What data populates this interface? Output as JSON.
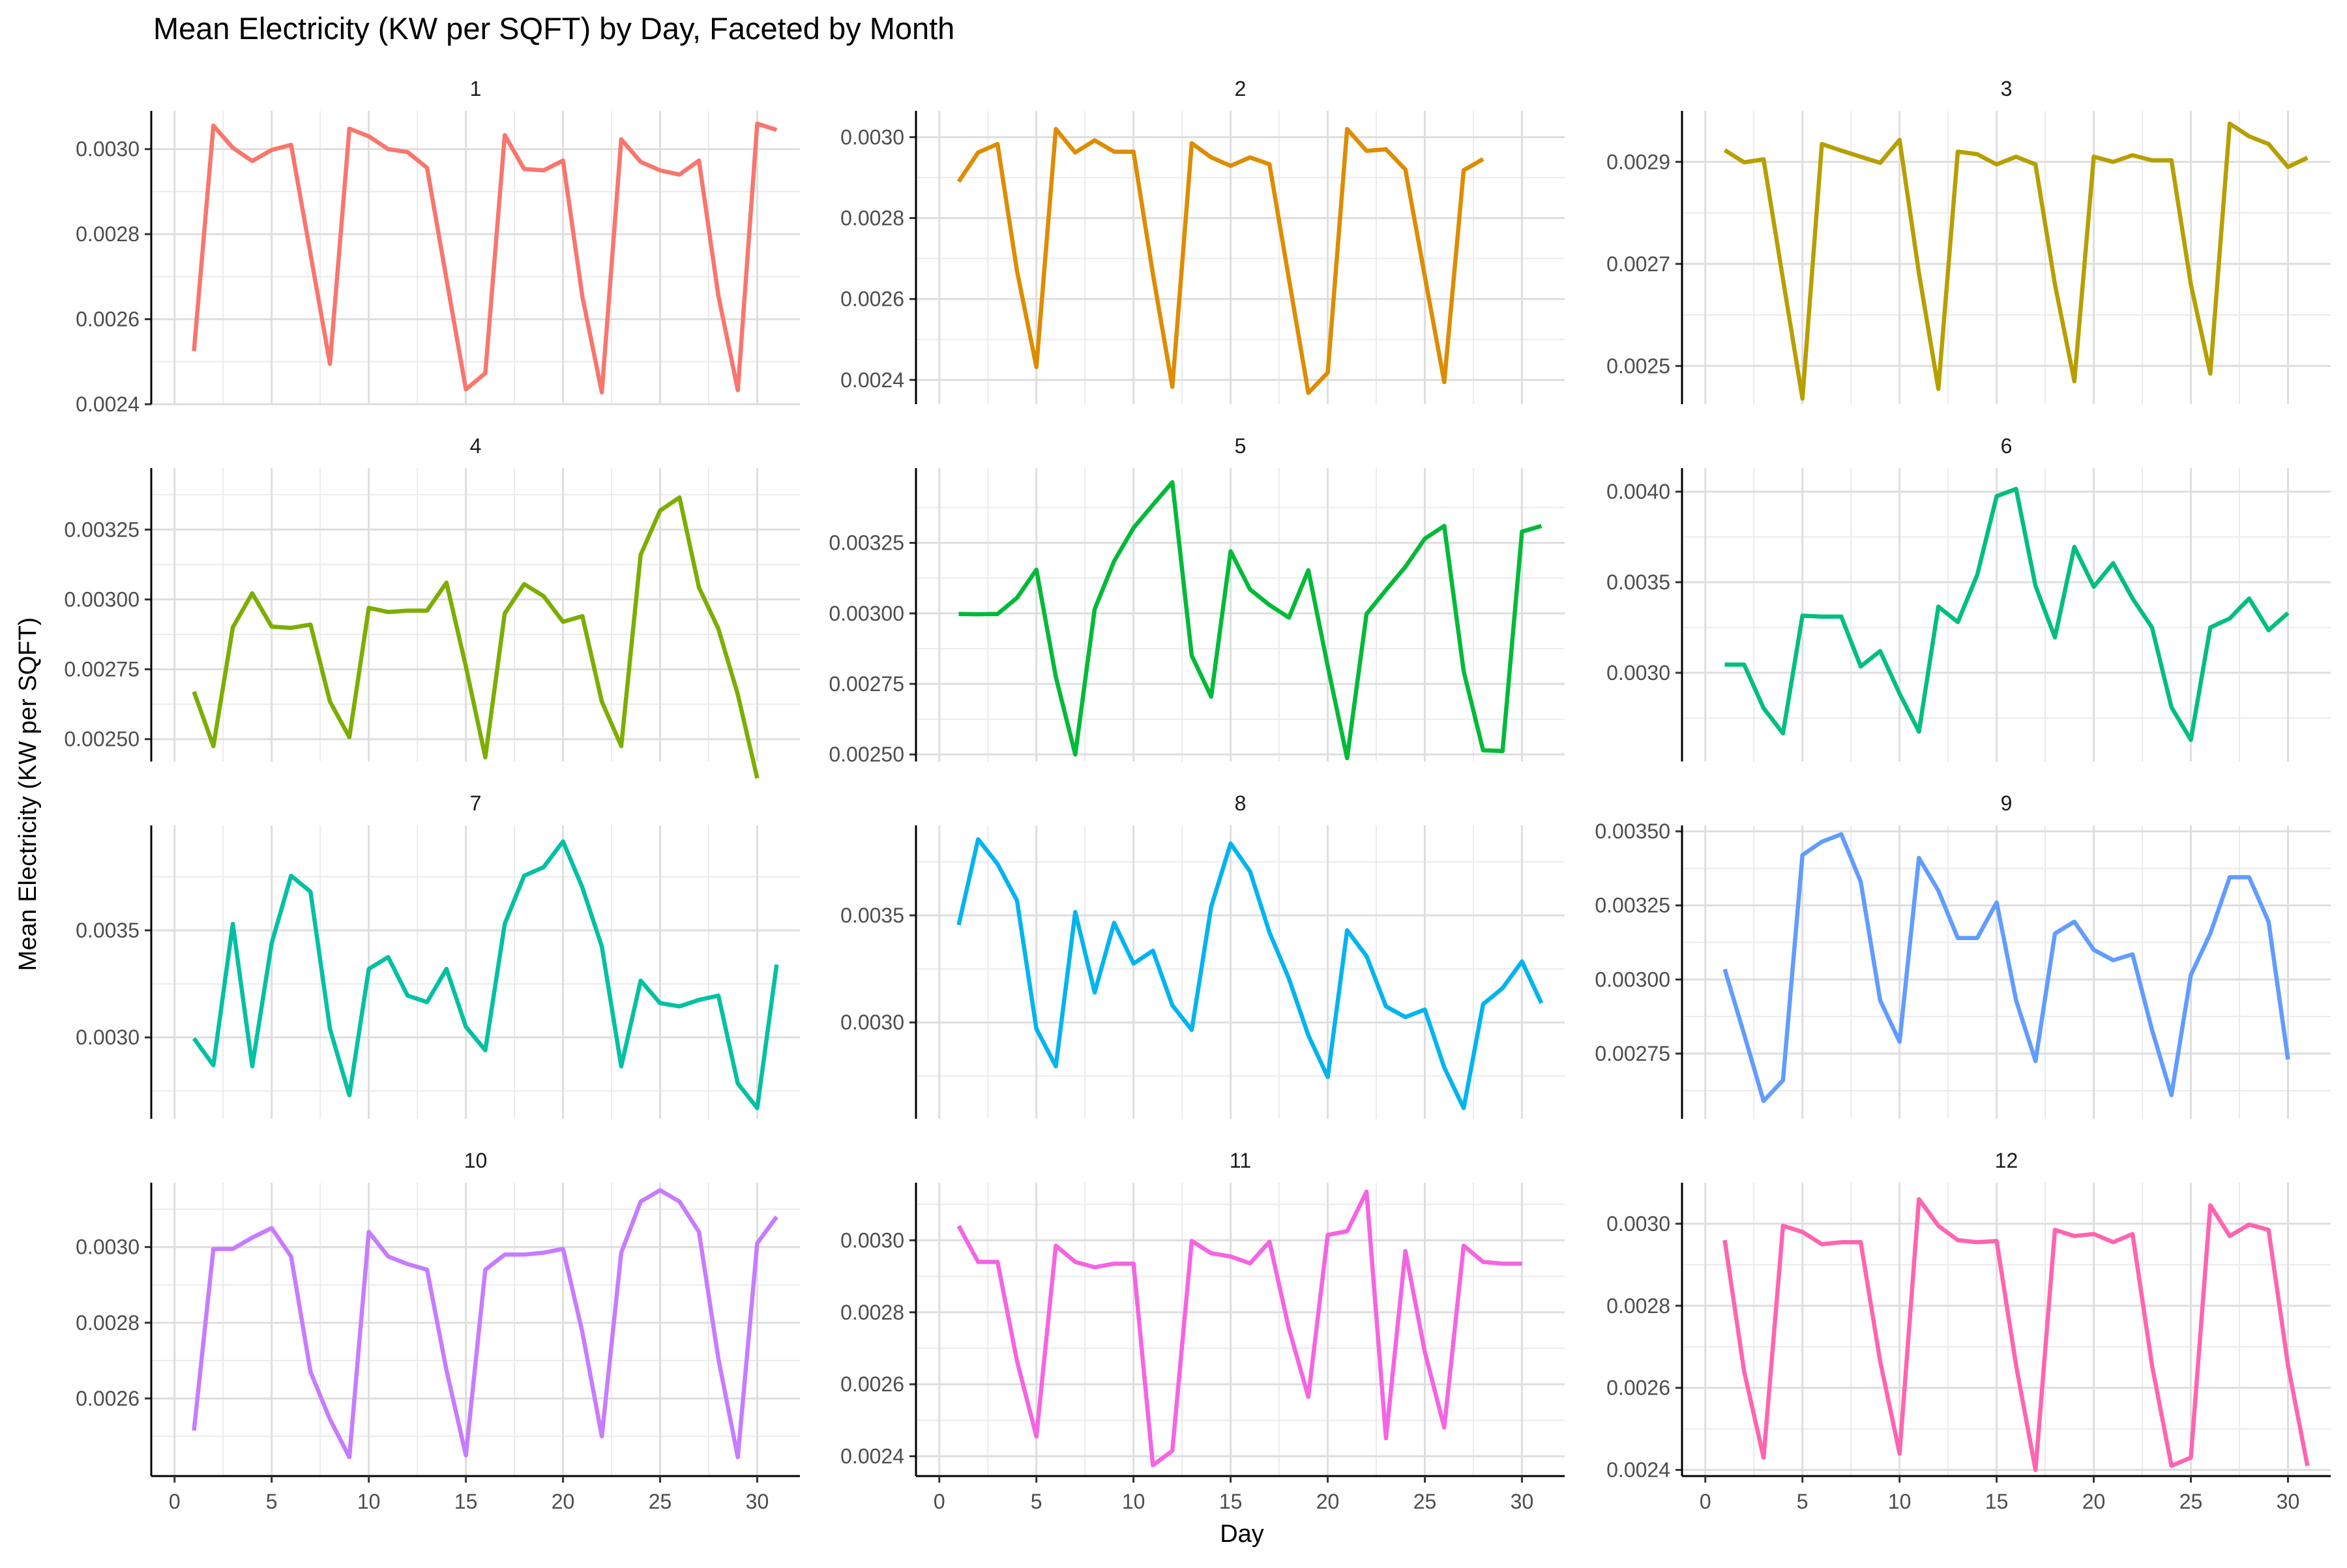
{
  "chart_data": {
    "type": "line",
    "title": "Mean Electricity (KW per SQFT) by Day, Faceted by Month",
    "xlabel": "Day",
    "ylabel": "Mean Electricity (KW per SQFT)",
    "x_ticks": [
      0,
      5,
      10,
      15,
      20,
      25,
      30
    ],
    "xlim": [
      -1.2,
      32.2
    ],
    "grid": true,
    "legend": "none",
    "facets": [
      {
        "name": "1",
        "color": "#F8766D",
        "ylim": [
          0.0024,
          0.00309
        ],
        "y_ticks": [
          0.0024,
          0.0026,
          0.0028,
          0.003
        ],
        "y_tick_labels": [
          "0.0024",
          "0.0026",
          "0.0028",
          "0.0030"
        ],
        "x": [
          1,
          2,
          3,
          4,
          5,
          6,
          7,
          8,
          9,
          10,
          11,
          12,
          13,
          14,
          15,
          16,
          17,
          18,
          19,
          20,
          21,
          22,
          23,
          24,
          25,
          26,
          27,
          28,
          29,
          30,
          31
        ],
        "y": [
          0.002525,
          0.003055,
          0.003003,
          0.002972,
          0.002998,
          0.00301,
          0.002753,
          0.002495,
          0.003048,
          0.00303,
          0.003,
          0.002993,
          0.002956,
          0.002695,
          0.002435,
          0.002473,
          0.003033,
          0.002953,
          0.00295,
          0.002973,
          0.002653,
          0.002428,
          0.003023,
          0.00297,
          0.00295,
          0.00294,
          0.002973,
          0.002655,
          0.002433,
          0.00306,
          0.003045
        ]
      },
      {
        "name": "2",
        "color": "#DE8C00",
        "ylim": [
          0.00234,
          0.003065
        ],
        "y_ticks": [
          0.0024,
          0.0026,
          0.0028,
          0.003
        ],
        "y_tick_labels": [
          "0.0024",
          "0.0026",
          "0.0028",
          "0.0030"
        ],
        "x": [
          1,
          2,
          3,
          4,
          5,
          6,
          7,
          8,
          9,
          10,
          11,
          12,
          13,
          14,
          15,
          16,
          17,
          18,
          19,
          20,
          21,
          22,
          23,
          24,
          25,
          26,
          27,
          28
        ],
        "y": [
          0.00289,
          0.002962,
          0.002983,
          0.00267,
          0.002432,
          0.00302,
          0.002962,
          0.002992,
          0.002964,
          0.002964,
          0.002662,
          0.002383,
          0.002985,
          0.00295,
          0.002929,
          0.00295,
          0.002933,
          0.00265,
          0.002368,
          0.002418,
          0.00302,
          0.002966,
          0.00297,
          0.00292,
          0.002656,
          0.002395,
          0.002918,
          0.002946
        ]
      },
      {
        "name": "3",
        "color": "#B79F00",
        "ylim": [
          0.002425,
          0.003
        ],
        "y_ticks": [
          0.0025,
          0.0027,
          0.0029
        ],
        "y_tick_labels": [
          "0.0025",
          "0.0027",
          "0.0029"
        ],
        "x": [
          1,
          2,
          3,
          4,
          5,
          6,
          7,
          8,
          9,
          10,
          11,
          12,
          13,
          14,
          15,
          16,
          17,
          18,
          19,
          20,
          21,
          22,
          23,
          24,
          25,
          26,
          27,
          28,
          29,
          30,
          31
        ],
        "y": [
          0.002923,
          0.002899,
          0.002905,
          0.00267,
          0.002436,
          0.002935,
          0.002922,
          0.00291,
          0.002898,
          0.002943,
          0.002682,
          0.002455,
          0.00292,
          0.002915,
          0.002895,
          0.00291,
          0.002895,
          0.00266,
          0.00247,
          0.00291,
          0.0029,
          0.002913,
          0.002903,
          0.002903,
          0.00266,
          0.002485,
          0.002975,
          0.00295,
          0.002935,
          0.00289,
          0.002908
        ]
      },
      {
        "name": "4",
        "color": "#7CAE00",
        "ylim": [
          0.00242,
          0.00347
        ],
        "y_ticks": [
          0.0025,
          0.00275,
          0.003,
          0.00325
        ],
        "y_tick_labels": [
          "0.00250",
          "0.00275",
          "0.00300",
          "0.00325"
        ],
        "x": [
          1,
          2,
          3,
          4,
          5,
          6,
          7,
          8,
          9,
          10,
          11,
          12,
          13,
          14,
          15,
          16,
          17,
          18,
          19,
          20,
          21,
          22,
          23,
          24,
          25,
          26,
          27,
          28,
          29,
          30
        ],
        "y": [
          0.00267,
          0.002475,
          0.0029,
          0.003022,
          0.002903,
          0.002898,
          0.00291,
          0.002635,
          0.002507,
          0.00297,
          0.002955,
          0.00296,
          0.00296,
          0.00306,
          0.00276,
          0.002435,
          0.00295,
          0.003055,
          0.003012,
          0.00292,
          0.00294,
          0.002635,
          0.002475,
          0.00316,
          0.003318,
          0.003365,
          0.003043,
          0.002895,
          0.00266,
          0.00236
        ]
      },
      {
        "name": "5",
        "color": "#00BA38",
        "ylim": [
          0.002475,
          0.003515
        ],
        "y_ticks": [
          0.0025,
          0.00275,
          0.003,
          0.00325
        ],
        "y_tick_labels": [
          "0.00250",
          "0.00275",
          "0.00300",
          "0.00325"
        ],
        "x": [
          1,
          2,
          3,
          4,
          5,
          6,
          7,
          8,
          9,
          10,
          11,
          12,
          13,
          14,
          15,
          16,
          17,
          18,
          19,
          20,
          21,
          22,
          23,
          24,
          25,
          26,
          27,
          28,
          29,
          30,
          31
        ],
        "y": [
          0.002998,
          0.002997,
          0.002998,
          0.003055,
          0.003155,
          0.002775,
          0.0025,
          0.003015,
          0.003185,
          0.003303,
          0.003385,
          0.003465,
          0.00285,
          0.002705,
          0.00322,
          0.003085,
          0.00303,
          0.002985,
          0.003153,
          0.002813,
          0.002487,
          0.002998,
          0.003083,
          0.003165,
          0.003265,
          0.00331,
          0.002795,
          0.002515,
          0.002512,
          0.00329,
          0.00331
        ]
      },
      {
        "name": "6",
        "color": "#00BF7D",
        "ylim": [
          0.00251,
          0.00413
        ],
        "y_ticks": [
          0.003,
          0.0035,
          0.004
        ],
        "y_tick_labels": [
          "0.0030",
          "0.0035",
          "0.0040"
        ],
        "x": [
          1,
          2,
          3,
          4,
          5,
          6,
          7,
          8,
          9,
          10,
          11,
          12,
          13,
          14,
          15,
          16,
          17,
          18,
          19,
          20,
          21,
          22,
          23,
          24,
          25,
          26,
          27,
          28,
          29,
          30
        ],
        "y": [
          0.003045,
          0.003045,
          0.002805,
          0.002665,
          0.003315,
          0.00331,
          0.00331,
          0.003035,
          0.00312,
          0.002885,
          0.002675,
          0.003365,
          0.00328,
          0.00354,
          0.003975,
          0.004015,
          0.00348,
          0.003195,
          0.003695,
          0.003475,
          0.003605,
          0.00341,
          0.00325,
          0.00281,
          0.00263,
          0.00325,
          0.0033,
          0.00341,
          0.003235,
          0.00333
        ]
      },
      {
        "name": "7",
        "color": "#00C1A3",
        "ylim": [
          0.00262,
          0.00399
        ],
        "y_ticks": [
          0.003,
          0.0035
        ],
        "y_tick_labels": [
          "0.0030",
          "0.0035"
        ],
        "x": [
          1,
          2,
          3,
          4,
          5,
          6,
          7,
          8,
          9,
          10,
          11,
          12,
          13,
          14,
          15,
          16,
          17,
          18,
          19,
          20,
          21,
          22,
          23,
          24,
          25,
          26,
          27,
          28,
          29,
          30,
          31
        ],
        "y": [
          0.002995,
          0.00287,
          0.00353,
          0.002865,
          0.00344,
          0.003755,
          0.00368,
          0.00304,
          0.00273,
          0.00332,
          0.003375,
          0.003195,
          0.003165,
          0.00332,
          0.00305,
          0.00294,
          0.00353,
          0.003755,
          0.003795,
          0.003915,
          0.0037,
          0.003425,
          0.002865,
          0.003265,
          0.00316,
          0.003145,
          0.003175,
          0.003195,
          0.002785,
          0.00267,
          0.00334
        ]
      },
      {
        "name": "8",
        "color": "#00B4EF",
        "ylim": [
          0.00255,
          0.00392
        ],
        "y_ticks": [
          0.003,
          0.0035
        ],
        "y_tick_labels": [
          "0.0030",
          "0.0035"
        ],
        "x": [
          1,
          2,
          3,
          4,
          5,
          6,
          7,
          8,
          9,
          10,
          11,
          12,
          13,
          14,
          15,
          16,
          17,
          18,
          19,
          20,
          21,
          22,
          23,
          24,
          25,
          26,
          27,
          28,
          29,
          30,
          31
        ],
        "y": [
          0.003455,
          0.003855,
          0.00374,
          0.00357,
          0.00297,
          0.002795,
          0.003515,
          0.00314,
          0.003465,
          0.003275,
          0.003335,
          0.00308,
          0.002965,
          0.00354,
          0.003835,
          0.003705,
          0.00342,
          0.003205,
          0.00294,
          0.002745,
          0.00343,
          0.00331,
          0.003075,
          0.003025,
          0.00306,
          0.00279,
          0.0026,
          0.003085,
          0.00316,
          0.003285,
          0.00309
        ]
      },
      {
        "name": "9",
        "color": "#619CFF",
        "ylim": [
          0.00253,
          0.00352
        ],
        "y_ticks": [
          0.00275,
          0.003,
          0.00325,
          0.0035
        ],
        "y_tick_labels": [
          "0.00275",
          "0.00300",
          "0.00325",
          "0.00350"
        ],
        "x": [
          1,
          2,
          3,
          4,
          5,
          6,
          7,
          8,
          9,
          10,
          11,
          12,
          13,
          14,
          15,
          16,
          17,
          18,
          19,
          20,
          21,
          22,
          23,
          24,
          25,
          26,
          27,
          28,
          29,
          30
        ],
        "y": [
          0.003035,
          0.002815,
          0.00259,
          0.00266,
          0.00342,
          0.003465,
          0.00349,
          0.00333,
          0.00293,
          0.00279,
          0.00341,
          0.0033,
          0.00314,
          0.00314,
          0.00326,
          0.00293,
          0.002725,
          0.003155,
          0.003195,
          0.0031,
          0.003065,
          0.003085,
          0.00283,
          0.00261,
          0.003015,
          0.003155,
          0.003345,
          0.003345,
          0.003195,
          0.00273
        ]
      },
      {
        "name": "10",
        "color": "#C77CFF",
        "ylim": [
          0.002395,
          0.00317
        ],
        "y_ticks": [
          0.0026,
          0.0028,
          0.003
        ],
        "y_tick_labels": [
          "0.0026",
          "0.0028",
          "0.0030"
        ],
        "x": [
          1,
          2,
          3,
          4,
          5,
          6,
          7,
          8,
          9,
          10,
          11,
          12,
          13,
          14,
          15,
          16,
          17,
          18,
          19,
          20,
          21,
          22,
          23,
          24,
          25,
          26,
          27,
          28,
          29,
          30,
          31
        ],
        "y": [
          0.002515,
          0.002995,
          0.002995,
          0.003025,
          0.00305,
          0.002975,
          0.00267,
          0.002545,
          0.002445,
          0.00304,
          0.002975,
          0.002955,
          0.00294,
          0.002675,
          0.00245,
          0.00294,
          0.00298,
          0.00298,
          0.002985,
          0.002995,
          0.002775,
          0.0025,
          0.002985,
          0.00312,
          0.00315,
          0.00312,
          0.00304,
          0.002705,
          0.002445,
          0.00301,
          0.00308
        ]
      },
      {
        "name": "11",
        "color": "#F564E3",
        "ylim": [
          0.002345,
          0.00316
        ],
        "y_ticks": [
          0.0024,
          0.0026,
          0.0028,
          0.003
        ],
        "y_tick_labels": [
          "0.0024",
          "0.0026",
          "0.0028",
          "0.0030"
        ],
        "x": [
          1,
          2,
          3,
          4,
          5,
          6,
          7,
          8,
          9,
          10,
          11,
          12,
          13,
          14,
          15,
          16,
          17,
          18,
          19,
          20,
          21,
          22,
          23,
          24,
          25,
          26,
          27,
          28,
          29,
          30
        ],
        "y": [
          0.00304,
          0.00294,
          0.00294,
          0.002665,
          0.002455,
          0.002985,
          0.00294,
          0.002925,
          0.002935,
          0.002935,
          0.002375,
          0.002415,
          0.002998,
          0.002964,
          0.002955,
          0.002936,
          0.002996,
          0.002755,
          0.002565,
          0.003015,
          0.003025,
          0.003135,
          0.00245,
          0.00297,
          0.00269,
          0.00248,
          0.002985,
          0.00294,
          0.002935,
          0.002935
        ]
      },
      {
        "name": "12",
        "color": "#FF64B0",
        "ylim": [
          0.002385,
          0.0031
        ],
        "y_ticks": [
          0.0024,
          0.0026,
          0.0028,
          0.003
        ],
        "y_tick_labels": [
          "0.0024",
          "0.0026",
          "0.0028",
          "0.0030"
        ],
        "x": [
          1,
          2,
          3,
          4,
          5,
          6,
          7,
          8,
          9,
          10,
          11,
          12,
          13,
          14,
          15,
          16,
          17,
          18,
          19,
          20,
          21,
          22,
          23,
          24,
          25,
          26,
          27,
          28,
          29,
          30,
          31
        ],
        "y": [
          0.00296,
          0.00264,
          0.00243,
          0.002995,
          0.00298,
          0.00295,
          0.002955,
          0.002955,
          0.002665,
          0.00244,
          0.00306,
          0.002995,
          0.00296,
          0.002955,
          0.002958,
          0.002655,
          0.0024,
          0.002985,
          0.00297,
          0.002975,
          0.002955,
          0.002975,
          0.002655,
          0.00241,
          0.00243,
          0.003045,
          0.00297,
          0.002998,
          0.002985,
          0.002655,
          0.00241
        ]
      }
    ]
  }
}
